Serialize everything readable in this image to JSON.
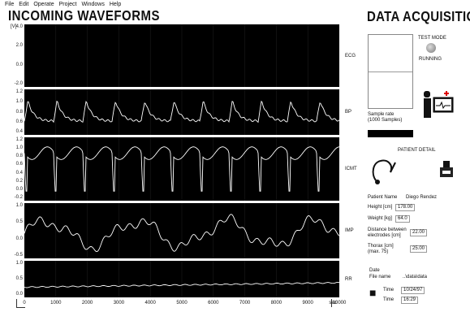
{
  "menu": [
    "File",
    "Edit",
    "Operate",
    "Project",
    "Windows",
    "Help"
  ],
  "title_left": "INCOMING WAVEFORMS",
  "title_right": "DATA ACQUISITION",
  "chart": {
    "unit": "[V]",
    "x_ticks": [
      "0",
      "1000",
      "2000",
      "3000",
      "4000",
      "5000",
      "6000",
      "7000",
      "8000",
      "9000",
      "10000",
      "sec"
    ],
    "panels": [
      {
        "label": "ECG",
        "ticks": [
          "4.0",
          "2.0",
          "0.0",
          "-2.0"
        ]
      },
      {
        "label": "BP",
        "ticks": [
          "1.2",
          "1.0",
          "0.8",
          "0.6",
          "0.4"
        ]
      },
      {
        "label": "ICMT",
        "ticks": [
          "1.2",
          "1.0",
          "0.8",
          "0.6",
          "0.4",
          "0.2",
          "0.0",
          "-0.2"
        ]
      },
      {
        "label": "IMP",
        "ticks": [
          "1.0",
          "0.5",
          "0.0",
          "-0.5"
        ]
      },
      {
        "label": "RR",
        "ticks": [
          "1.0",
          "0.5",
          "0.0"
        ]
      }
    ]
  },
  "sample": {
    "label_line1": "Sample rate",
    "label_line2": "(1000 Samples)"
  },
  "test_mode": "TEST MODE",
  "running": "RUNNING",
  "patient": {
    "title": "PATIENT DETAIL",
    "name_label": "Patient Name",
    "name_value": "Diego Rendez",
    "height_label": "Height [cm]",
    "height_value": "178.00",
    "weight_label": "Weight [kg]",
    "weight_value": "64.0",
    "dist_label_1": "Distance between",
    "dist_label_2": "electrodes [cm]",
    "dist_value": "22.00",
    "thorax_label_1": "Thorax [cm]",
    "thorax_label_2": "(max. 75)",
    "thorax_value": "25.00",
    "date_label": "Date",
    "file_label": "File name",
    "file_value": "..\\data\\data",
    "time_label_1": "Time",
    "time_value_1": "10/24/97",
    "time_label_2": "Time",
    "time_value_2": "16:29"
  }
}
